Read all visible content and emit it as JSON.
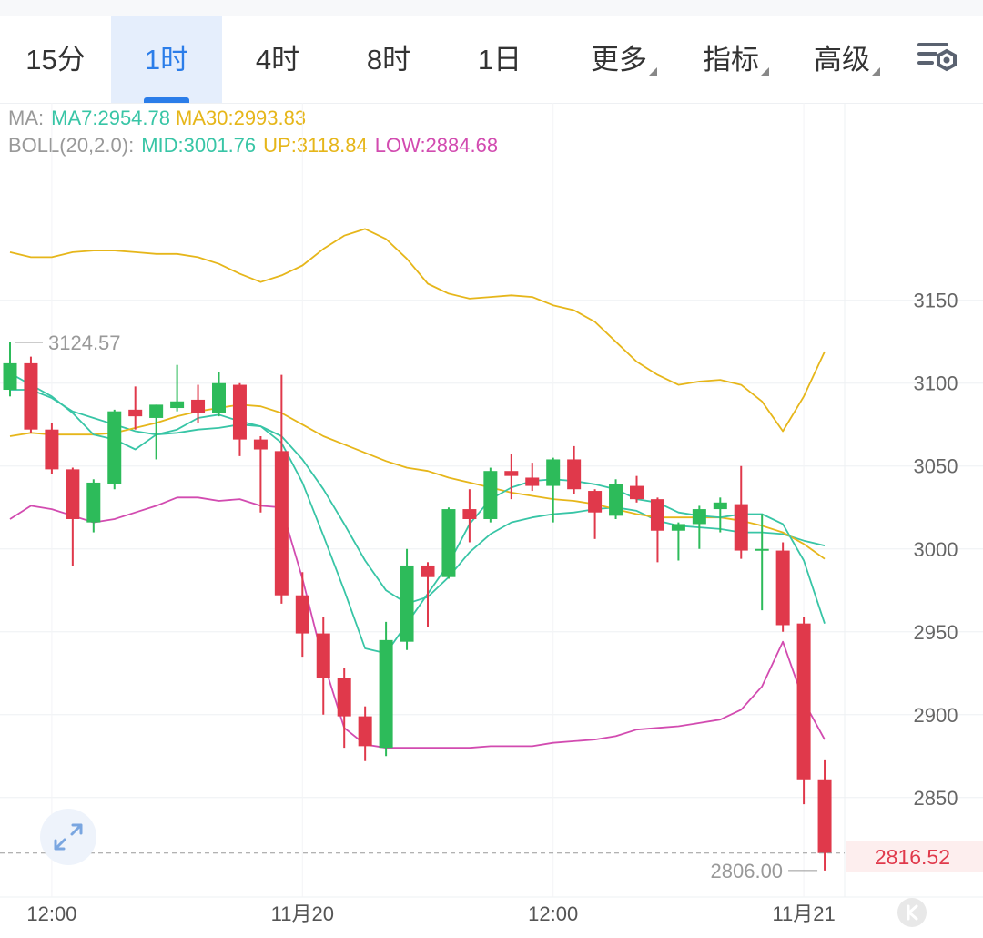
{
  "tabs": [
    {
      "label": "15分",
      "active": false
    },
    {
      "label": "1时",
      "active": true
    },
    {
      "label": "4时",
      "active": false
    },
    {
      "label": "8时",
      "active": false
    },
    {
      "label": "1日",
      "active": false
    },
    {
      "label": "更多",
      "dropdown": true
    },
    {
      "label": "指标",
      "dropdown": true
    },
    {
      "label": "高级",
      "dropdown": true
    }
  ],
  "indicators": {
    "ma_prefix": "MA:",
    "ma7": "MA7:2954.78",
    "ma30": "MA30:2993.83",
    "boll_prefix": "BOLL(20,2.0):",
    "mid": "MID:3001.76",
    "up": "UP:3118.84",
    "low": "LOW:2884.68"
  },
  "colors": {
    "up_candle": "#2dbb5a",
    "down_candle": "#e0394b",
    "ma7": "#38c5a6",
    "ma30": "#e6b61a",
    "boll_up": "#e6b61a",
    "boll_mid": "#38c5a6",
    "boll_low": "#d24bb0",
    "accent": "#2b7de9"
  },
  "chart_data": {
    "type": "candlestick",
    "interval": "1时",
    "ylim": [
      2790,
      3235
    ],
    "y_ticks": [
      "3150",
      "3100",
      "3050",
      "3000",
      "2950",
      "2900",
      "2850"
    ],
    "x_ticks": [
      "12:00",
      "11月20",
      "12:00",
      "11月21"
    ],
    "x_tick_index": [
      2,
      14,
      26,
      38
    ],
    "current_price": "2816.52",
    "max_marker": {
      "label": "3124.57",
      "index": 0,
      "value": 3124.57
    },
    "min_marker": {
      "label": "2806.00",
      "index": 39,
      "value": 2806.0
    },
    "candles": [
      {
        "o": 3096,
        "h": 3124.57,
        "l": 3092,
        "c": 3112
      },
      {
        "o": 3112,
        "h": 3116,
        "l": 3070,
        "c": 3072
      },
      {
        "o": 3072,
        "h": 3076,
        "l": 3045,
        "c": 3048
      },
      {
        "o": 3048,
        "h": 3049,
        "l": 2990,
        "c": 3018
      },
      {
        "o": 3016,
        "h": 3042,
        "l": 3010,
        "c": 3040
      },
      {
        "o": 3039,
        "h": 3084,
        "l": 3036,
        "c": 3083
      },
      {
        "o": 3084,
        "h": 3098,
        "l": 3072,
        "c": 3080
      },
      {
        "o": 3079,
        "h": 3087,
        "l": 3054,
        "c": 3087
      },
      {
        "o": 3085,
        "h": 3111,
        "l": 3083,
        "c": 3089
      },
      {
        "o": 3090,
        "h": 3099,
        "l": 3076,
        "c": 3082
      },
      {
        "o": 3082,
        "h": 3107,
        "l": 3080,
        "c": 3100
      },
      {
        "o": 3099,
        "h": 3100,
        "l": 3056,
        "c": 3066
      },
      {
        "o": 3066,
        "h": 3068,
        "l": 3022,
        "c": 3060
      },
      {
        "o": 3059,
        "h": 3105,
        "l": 2967,
        "c": 2972
      },
      {
        "o": 2972,
        "h": 2986,
        "l": 2935,
        "c": 2949
      },
      {
        "o": 2949,
        "h": 2959,
        "l": 2900,
        "c": 2922
      },
      {
        "o": 2922,
        "h": 2928,
        "l": 2880,
        "c": 2899
      },
      {
        "o": 2899,
        "h": 2905,
        "l": 2872,
        "c": 2881
      },
      {
        "o": 2880,
        "h": 2956,
        "l": 2875,
        "c": 2945
      },
      {
        "o": 2944,
        "h": 3000,
        "l": 2939,
        "c": 2990
      },
      {
        "o": 2990,
        "h": 2992,
        "l": 2953,
        "c": 2983
      },
      {
        "o": 2983,
        "h": 3025,
        "l": 2982,
        "c": 3024
      },
      {
        "o": 3024,
        "h": 3036,
        "l": 3004,
        "c": 3018
      },
      {
        "o": 3018,
        "h": 3049,
        "l": 3016,
        "c": 3047
      },
      {
        "o": 3047,
        "h": 3057,
        "l": 3030,
        "c": 3044
      },
      {
        "o": 3043,
        "h": 3052,
        "l": 3035,
        "c": 3038
      },
      {
        "o": 3038,
        "h": 3055,
        "l": 3016,
        "c": 3054
      },
      {
        "o": 3054,
        "h": 3062,
        "l": 3033,
        "c": 3036
      },
      {
        "o": 3035,
        "h": 3036,
        "l": 3006,
        "c": 3022
      },
      {
        "o": 3020,
        "h": 3042,
        "l": 3018,
        "c": 3039
      },
      {
        "o": 3038,
        "h": 3044,
        "l": 3028,
        "c": 3030
      },
      {
        "o": 3030,
        "h": 3031,
        "l": 2992,
        "c": 3011
      },
      {
        "o": 3011,
        "h": 3016,
        "l": 2993,
        "c": 3015
      },
      {
        "o": 3015,
        "h": 3026,
        "l": 3000,
        "c": 3024
      },
      {
        "o": 3024,
        "h": 3031,
        "l": 3010,
        "c": 3028
      },
      {
        "o": 3027,
        "h": 3050,
        "l": 2994,
        "c": 2999
      },
      {
        "o": 3000,
        "h": 3021,
        "l": 2963,
        "c": 3000
      },
      {
        "o": 2999,
        "h": 3004,
        "l": 2950,
        "c": 2954
      },
      {
        "o": 2955,
        "h": 2959,
        "l": 2846,
        "c": 2861
      },
      {
        "o": 2861,
        "h": 2873,
        "l": 2806,
        "c": 2816.52
      }
    ],
    "lines": {
      "ma7": [
        3106,
        3099,
        3092,
        3082,
        3069,
        3066,
        3060,
        3069,
        3072,
        3079,
        3081,
        3077,
        3074,
        3064,
        3040,
        3008,
        2975,
        2940,
        2937,
        2955,
        2973,
        2991,
        3015,
        3030,
        3037,
        3041,
        3042,
        3041,
        3039,
        3036,
        3030,
        3028,
        3022,
        3020,
        3019,
        3021,
        3021,
        3015,
        2993,
        2955
      ],
      "ma30": [
        3068,
        3070,
        3069,
        3069,
        3069,
        3070,
        3073,
        3076,
        3080,
        3083,
        3085,
        3087,
        3086,
        3082,
        3075,
        3068,
        3063,
        3058,
        3053,
        3049,
        3047,
        3043,
        3040,
        3037,
        3034,
        3032,
        3030,
        3029,
        3027,
        3024,
        3021,
        3019,
        3019,
        3019,
        3019,
        3017,
        3014,
        3010,
        3003,
        2994
      ],
      "boll_up": [
        3179,
        3176,
        3176,
        3179,
        3180,
        3180,
        3179,
        3178,
        3178,
        3176,
        3172,
        3166,
        3161,
        3165,
        3171,
        3181,
        3189,
        3193,
        3187,
        3175,
        3160,
        3154,
        3151,
        3152,
        3153,
        3152,
        3147,
        3144,
        3137,
        3125,
        3113,
        3105,
        3099,
        3101,
        3102,
        3099,
        3089,
        3071,
        3092,
        3119
      ],
      "boll_mid": [
        3096,
        3096,
        3091,
        3083,
        3079,
        3075,
        3071,
        3069,
        3070,
        3072,
        3073,
        3075,
        3074,
        3068,
        3054,
        3036,
        3015,
        2993,
        2975,
        2967,
        2971,
        2983,
        2998,
        3009,
        3016,
        3019,
        3021,
        3022,
        3024,
        3025,
        3023,
        3017,
        3014,
        3013,
        3012,
        3010,
        3010,
        3009,
        3005,
        3002
      ],
      "boll_low": [
        3018,
        3026,
        3024,
        3020,
        3016,
        3018,
        3022,
        3026,
        3031,
        3031,
        3029,
        3030,
        3026,
        3025,
        2982,
        2932,
        2892,
        2882,
        2880,
        2880,
        2880,
        2880,
        2880,
        2881,
        2881,
        2881,
        2883,
        2884,
        2885,
        2887,
        2891,
        2892,
        2893,
        2895,
        2897,
        2903,
        2917,
        2944,
        2908,
        2885
      ]
    }
  }
}
